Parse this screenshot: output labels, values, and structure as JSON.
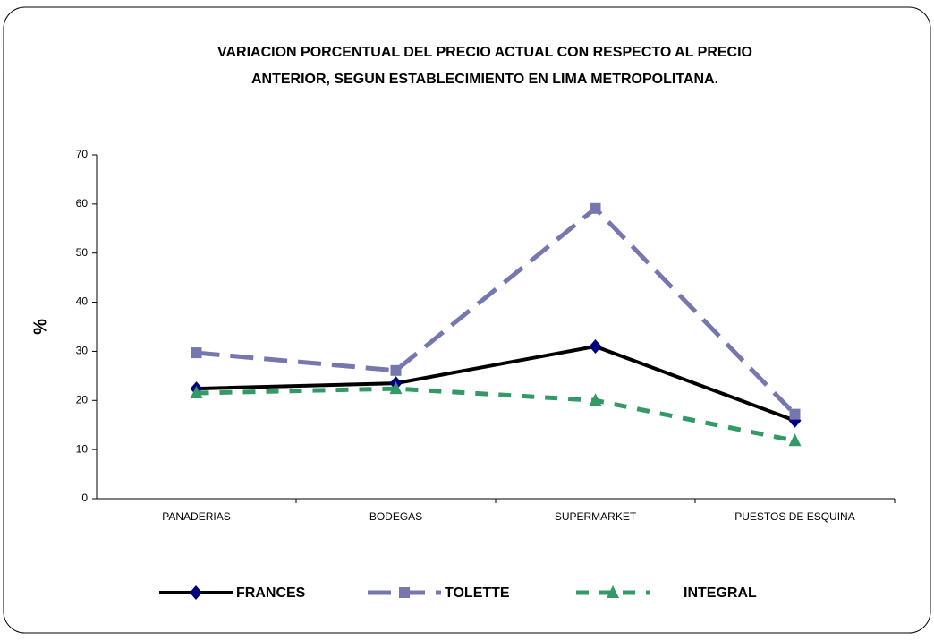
{
  "chart_data": {
    "type": "line",
    "title": [
      "VARIACION PORCENTUAL DEL PRECIO ACTUAL CON RESPECTO AL PRECIO",
      "ANTERIOR, SEGUN ESTABLECIMIENTO EN LIMA METROPOLITANA."
    ],
    "y_label": "%",
    "categories": [
      "PANADERIAS",
      "BODEGAS",
      "SUPERMARKET",
      "PUESTOS DE ESQUINA"
    ],
    "series": [
      {
        "name": "FRANCES",
        "color": "#000000",
        "marker_color": "#000080",
        "marker": "diamond",
        "dash": "solid",
        "values": [
          22.4,
          23.5,
          31,
          15.9
        ]
      },
      {
        "name": "TOLETTE",
        "color": "#7777b0",
        "marker_color": "#7777b0",
        "marker": "square",
        "dash": "long",
        "values": [
          29.7,
          26.1,
          59.1,
          17.2
        ]
      },
      {
        "name": "INTEGRAL",
        "color": "#339966",
        "marker_color": "#339966",
        "marker": "triangle",
        "dash": "short",
        "values": [
          21.5,
          22.4,
          20,
          11.8
        ]
      }
    ],
    "ylim": [
      0,
      70
    ],
    "yticks": [
      0,
      10,
      20,
      30,
      40,
      50,
      60,
      70
    ],
    "grid": false,
    "legend": "bottom"
  }
}
